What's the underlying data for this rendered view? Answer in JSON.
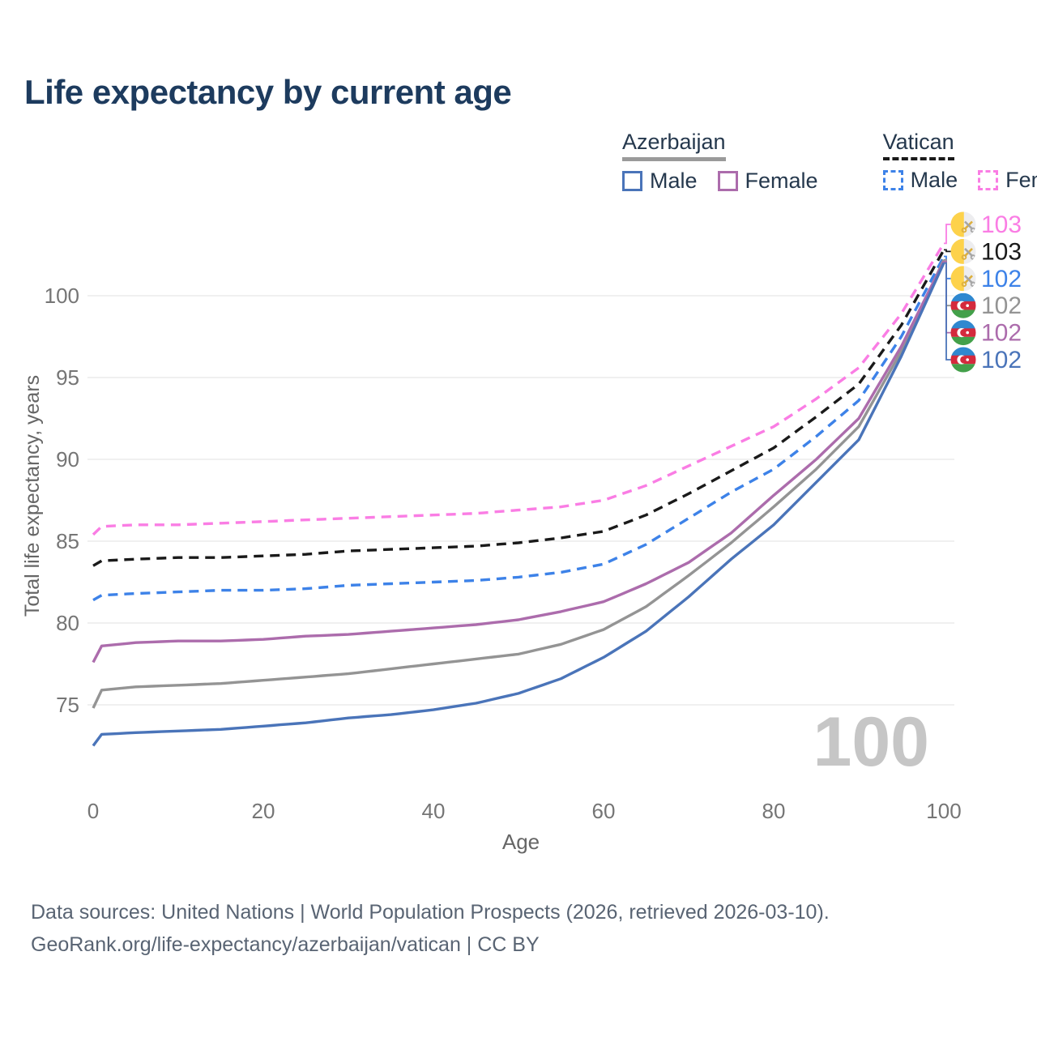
{
  "title": "Life expectancy by current age",
  "watermark_age": "100",
  "legend": {
    "groups": [
      {
        "name": "Azerbaijan",
        "underline_style": "solid",
        "underline_color": "#9a9a9a",
        "items": [
          {
            "label": "Male",
            "color": "#4a74b9",
            "dash": false
          },
          {
            "label": "Female",
            "color": "#ac6cac",
            "dash": false
          }
        ]
      },
      {
        "name": "Vatican",
        "underline_style": "dashed",
        "underline_color": "#1a1a1a",
        "items": [
          {
            "label": "Male",
            "color": "#3d82e8",
            "dash": true
          },
          {
            "label": "Female",
            "color": "#fa7de4",
            "dash": true
          }
        ]
      }
    ]
  },
  "chart_data": {
    "type": "line",
    "title": "Life expectancy by current age",
    "xlabel": "Age",
    "ylabel": "Total life expectancy, years",
    "xlim": [
      0,
      100
    ],
    "ylim": [
      72,
      104
    ],
    "x_ticks": [
      0,
      20,
      40,
      60,
      80,
      100
    ],
    "y_ticks": [
      75,
      80,
      85,
      90,
      95,
      100
    ],
    "grid": "horizontal",
    "legend_position": "top-right",
    "x": [
      0,
      1,
      5,
      10,
      15,
      20,
      25,
      30,
      35,
      40,
      45,
      50,
      55,
      60,
      65,
      70,
      75,
      80,
      85,
      90,
      95,
      100
    ],
    "series": [
      {
        "name": "Vatican Female",
        "country": "vatican",
        "sex": "female",
        "color": "#fa7de4",
        "dash": true,
        "label_row": 0,
        "end_label": "103",
        "values": [
          85.4,
          85.9,
          86.0,
          86.0,
          86.1,
          86.2,
          86.3,
          86.4,
          86.5,
          86.6,
          86.7,
          86.9,
          87.1,
          87.5,
          88.4,
          89.6,
          90.8,
          92.0,
          93.7,
          95.6,
          98.9,
          103.2
        ]
      },
      {
        "name": "Vatican",
        "country": "vatican",
        "sex": "both",
        "color": "#1a1a1a",
        "dash": true,
        "label_row": 1,
        "end_label": "103",
        "values": [
          83.5,
          83.8,
          83.9,
          84.0,
          84.0,
          84.1,
          84.2,
          84.4,
          84.5,
          84.6,
          84.7,
          84.9,
          85.2,
          85.6,
          86.6,
          87.9,
          89.3,
          90.7,
          92.6,
          94.6,
          98.2,
          102.8
        ]
      },
      {
        "name": "Vatican Male",
        "country": "vatican",
        "sex": "male",
        "color": "#3d82e8",
        "dash": true,
        "label_row": 2,
        "end_label": "102",
        "values": [
          81.4,
          81.7,
          81.8,
          81.9,
          82.0,
          82.0,
          82.1,
          82.3,
          82.4,
          82.5,
          82.6,
          82.8,
          83.1,
          83.6,
          84.8,
          86.4,
          88.0,
          89.4,
          91.4,
          93.6,
          97.5,
          102.4
        ]
      },
      {
        "name": "Azerbaijan",
        "country": "azerbaijan",
        "sex": "both",
        "color": "#949494",
        "dash": false,
        "label_row": 3,
        "end_label": "102",
        "values": [
          74.8,
          75.9,
          76.1,
          76.2,
          76.3,
          76.5,
          76.7,
          76.9,
          77.2,
          77.5,
          77.8,
          78.1,
          78.7,
          79.6,
          81.0,
          82.9,
          84.9,
          87.1,
          89.4,
          92.0,
          96.6,
          102.2
        ]
      },
      {
        "name": "Azerbaijan Female",
        "country": "azerbaijan",
        "sex": "female",
        "color": "#ac6cac",
        "dash": false,
        "label_row": 4,
        "end_label": "102",
        "values": [
          77.6,
          78.6,
          78.8,
          78.9,
          78.9,
          79.0,
          79.2,
          79.3,
          79.5,
          79.7,
          79.9,
          80.2,
          80.7,
          81.3,
          82.4,
          83.7,
          85.5,
          87.8,
          90.0,
          92.5,
          96.9,
          102.1
        ]
      },
      {
        "name": "Azerbaijan Male",
        "country": "azerbaijan",
        "sex": "male",
        "color": "#4a74b9",
        "dash": false,
        "label_row": 5,
        "end_label": "102",
        "values": [
          72.5,
          73.2,
          73.3,
          73.4,
          73.5,
          73.7,
          73.9,
          74.2,
          74.4,
          74.7,
          75.1,
          75.7,
          76.6,
          77.9,
          79.5,
          81.6,
          83.9,
          86.0,
          88.6,
          91.2,
          96.3,
          102.0
        ]
      }
    ]
  },
  "flags": {
    "vatican": {
      "yellow": "#fdd24b",
      "white": "#ededef",
      "key_gold": "#dcaf3e",
      "key_gray": "#a6a6a6"
    },
    "azerbaijan": {
      "blue": "#2f88d0",
      "red": "#d42a3d",
      "green": "#43a04a",
      "emblem": "#ffffff"
    }
  },
  "style_colors": {
    "title": "#1d3b5e",
    "ticks": "#757575",
    "axis_labels": "#666666",
    "grid": "#ececec",
    "watermark": "#c6c6c6",
    "footer": "#596473",
    "legend_text": "#25384d"
  },
  "footer": {
    "line1": "Data sources: United Nations | World Population Prospects (2026, retrieved 2026-03-10).",
    "line2": "GeoRank.org/life-expectancy/azerbaijan/vatican | CC BY"
  }
}
